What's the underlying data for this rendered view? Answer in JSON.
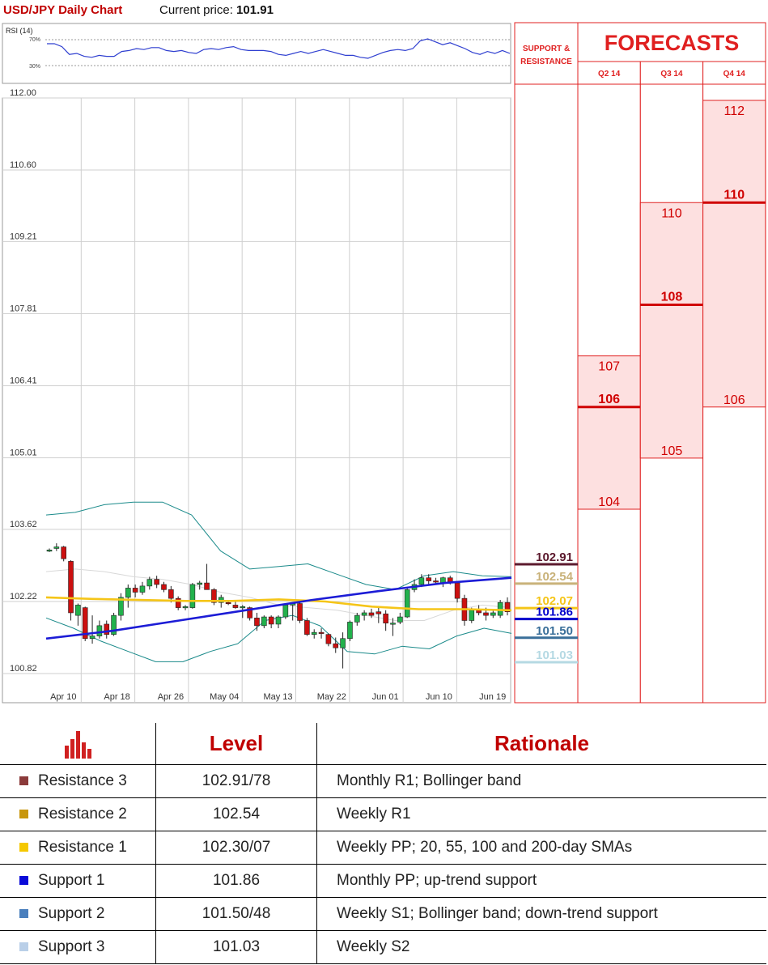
{
  "header": {
    "title": "USD/JPY Daily Chart",
    "price_label": "Current price:",
    "price_value": "101.91"
  },
  "chart_data": [
    {
      "type": "line",
      "title": "RSI (14)",
      "ylim": [
        20,
        80
      ],
      "reference_levels": [
        "70%",
        "30%"
      ],
      "series": [
        {
          "values": [
            60,
            60,
            57,
            49,
            50,
            47,
            46,
            48,
            47,
            47,
            52,
            53,
            55,
            54,
            56,
            56,
            53,
            52,
            53,
            51,
            50,
            54,
            55,
            54,
            56,
            57,
            54,
            53,
            53,
            53,
            52,
            49,
            48,
            50,
            52,
            50,
            52,
            54,
            52,
            50,
            48,
            48,
            46,
            45,
            48,
            51,
            53,
            54,
            53,
            55,
            63,
            65,
            62,
            59,
            61,
            58,
            55,
            51,
            49,
            52,
            50,
            53,
            50
          ]
        }
      ],
      "colors": {
        "line": "#2f3fd0"
      }
    },
    {
      "type": "candlestick",
      "x": [
        "Apr 10",
        "Apr 18",
        "Apr 26",
        "May 04",
        "May 13",
        "May 22",
        "Jun 01",
        "Jun 10",
        "Jun 19"
      ],
      "y_ticks": [
        "112.00",
        "110.60",
        "109.21",
        "107.81",
        "106.41",
        "105.01",
        "103.62",
        "102.22",
        "100.82"
      ],
      "ylim": [
        100.82,
        112.0
      ],
      "grid": true,
      "candles": [
        {
          "o": 103.2,
          "h": 103.25,
          "l": 103.18,
          "c": 103.22
        },
        {
          "o": 103.25,
          "h": 103.35,
          "l": 103.2,
          "c": 103.28
        },
        {
          "o": 103.28,
          "h": 103.3,
          "l": 103.0,
          "c": 103.05
        },
        {
          "o": 103.0,
          "h": 103.02,
          "l": 101.85,
          "c": 102.0
        },
        {
          "o": 101.95,
          "h": 102.18,
          "l": 101.75,
          "c": 102.15
        },
        {
          "o": 102.1,
          "h": 102.12,
          "l": 101.45,
          "c": 101.5
        },
        {
          "o": 101.5,
          "h": 101.95,
          "l": 101.4,
          "c": 101.55
        },
        {
          "o": 101.55,
          "h": 101.85,
          "l": 101.5,
          "c": 101.75
        },
        {
          "o": 101.78,
          "h": 101.85,
          "l": 101.5,
          "c": 101.58
        },
        {
          "o": 101.58,
          "h": 102.0,
          "l": 101.55,
          "c": 101.95
        },
        {
          "o": 101.95,
          "h": 102.38,
          "l": 101.85,
          "c": 102.3
        },
        {
          "o": 102.3,
          "h": 102.55,
          "l": 102.1,
          "c": 102.48
        },
        {
          "o": 102.48,
          "h": 102.55,
          "l": 102.3,
          "c": 102.4
        },
        {
          "o": 102.4,
          "h": 102.6,
          "l": 102.35,
          "c": 102.52
        },
        {
          "o": 102.52,
          "h": 102.7,
          "l": 102.45,
          "c": 102.65
        },
        {
          "o": 102.65,
          "h": 102.72,
          "l": 102.48,
          "c": 102.55
        },
        {
          "o": 102.55,
          "h": 102.6,
          "l": 102.4,
          "c": 102.45
        },
        {
          "o": 102.45,
          "h": 102.52,
          "l": 102.2,
          "c": 102.28
        },
        {
          "o": 102.28,
          "h": 102.32,
          "l": 102.05,
          "c": 102.1
        },
        {
          "o": 102.1,
          "h": 102.15,
          "l": 102.05,
          "c": 102.12
        },
        {
          "o": 102.1,
          "h": 102.58,
          "l": 102.08,
          "c": 102.55
        },
        {
          "o": 102.55,
          "h": 102.62,
          "l": 102.45,
          "c": 102.58
        },
        {
          "o": 102.58,
          "h": 102.95,
          "l": 102.55,
          "c": 102.45
        },
        {
          "o": 102.45,
          "h": 102.48,
          "l": 102.15,
          "c": 102.2
        },
        {
          "o": 102.2,
          "h": 102.35,
          "l": 102.1,
          "c": 102.3
        },
        {
          "o": 102.2,
          "h": 102.25,
          "l": 102.15,
          "c": 102.18
        },
        {
          "o": 102.15,
          "h": 102.22,
          "l": 102.08,
          "c": 102.1
        },
        {
          "o": 102.1,
          "h": 102.15,
          "l": 101.9,
          "c": 102.12
        },
        {
          "o": 102.1,
          "h": 102.12,
          "l": 101.85,
          "c": 101.9
        },
        {
          "o": 101.9,
          "h": 102.0,
          "l": 101.65,
          "c": 101.75
        },
        {
          "o": 101.75,
          "h": 101.95,
          "l": 101.7,
          "c": 101.92
        },
        {
          "o": 101.92,
          "h": 101.95,
          "l": 101.7,
          "c": 101.78
        },
        {
          "o": 101.78,
          "h": 101.95,
          "l": 101.7,
          "c": 101.92
        },
        {
          "o": 101.92,
          "h": 102.18,
          "l": 101.88,
          "c": 102.15
        },
        {
          "o": 102.15,
          "h": 102.2,
          "l": 101.85,
          "c": 102.18
        },
        {
          "o": 102.18,
          "h": 102.25,
          "l": 101.8,
          "c": 101.85
        },
        {
          "o": 101.85,
          "h": 101.9,
          "l": 101.55,
          "c": 101.58
        },
        {
          "o": 101.58,
          "h": 101.68,
          "l": 101.5,
          "c": 101.62
        },
        {
          "o": 101.62,
          "h": 101.7,
          "l": 101.5,
          "c": 101.6
        },
        {
          "o": 101.58,
          "h": 101.6,
          "l": 101.35,
          "c": 101.4
        },
        {
          "o": 101.4,
          "h": 101.52,
          "l": 101.22,
          "c": 101.32
        },
        {
          "o": 101.32,
          "h": 101.62,
          "l": 100.92,
          "c": 101.5
        },
        {
          "o": 101.5,
          "h": 101.85,
          "l": 101.45,
          "c": 101.82
        },
        {
          "o": 101.82,
          "h": 102.0,
          "l": 101.75,
          "c": 101.95
        },
        {
          "o": 101.95,
          "h": 102.05,
          "l": 101.85,
          "c": 102.0
        },
        {
          "o": 102.0,
          "h": 102.08,
          "l": 101.9,
          "c": 101.95
        },
        {
          "o": 102.02,
          "h": 102.1,
          "l": 101.8,
          "c": 101.98
        },
        {
          "o": 101.98,
          "h": 102.05,
          "l": 101.65,
          "c": 101.8
        },
        {
          "o": 101.8,
          "h": 101.9,
          "l": 101.55,
          "c": 101.8
        },
        {
          "o": 101.82,
          "h": 102.0,
          "l": 101.78,
          "c": 101.92
        },
        {
          "o": 101.92,
          "h": 102.48,
          "l": 101.9,
          "c": 102.45
        },
        {
          "o": 102.45,
          "h": 102.65,
          "l": 102.4,
          "c": 102.55
        },
        {
          "o": 102.55,
          "h": 102.75,
          "l": 102.5,
          "c": 102.68
        },
        {
          "o": 102.68,
          "h": 102.75,
          "l": 102.55,
          "c": 102.62
        },
        {
          "o": 102.62,
          "h": 102.68,
          "l": 102.55,
          "c": 102.6
        },
        {
          "o": 102.58,
          "h": 102.7,
          "l": 102.5,
          "c": 102.68
        },
        {
          "o": 102.68,
          "h": 102.72,
          "l": 102.55,
          "c": 102.58
        },
        {
          "o": 102.58,
          "h": 102.6,
          "l": 102.2,
          "c": 102.28
        },
        {
          "o": 102.28,
          "h": 102.35,
          "l": 101.75,
          "c": 101.85
        },
        {
          "o": 101.85,
          "h": 102.1,
          "l": 101.8,
          "c": 102.05
        },
        {
          "o": 102.05,
          "h": 102.15,
          "l": 101.95,
          "c": 102.0
        },
        {
          "o": 102.0,
          "h": 102.1,
          "l": 101.85,
          "c": 101.95
        },
        {
          "o": 101.95,
          "h": 102.05,
          "l": 101.9,
          "c": 102.0
        },
        {
          "o": 101.95,
          "h": 102.25,
          "l": 101.9,
          "c": 102.2
        },
        {
          "o": 102.2,
          "h": 102.3,
          "l": 101.95,
          "c": 102.02
        }
      ],
      "overlays": [
        {
          "values": [
            101.5,
            101.65,
            101.85,
            102.05,
            102.25,
            102.42,
            102.58,
            102.68
          ]
        },
        {
          "values": [
            102.3,
            102.27,
            102.25,
            102.23,
            102.23,
            102.26,
            102.22,
            102.12,
            102.07,
            102.07,
            102.05
          ]
        },
        {
          "values": [
            103.9,
            103.95,
            104.1,
            104.15,
            104.15,
            103.9,
            103.2,
            102.85,
            102.9,
            102.95,
            102.75,
            102.55,
            102.45,
            102.72,
            102.8,
            102.72,
            102.7
          ]
        },
        {
          "values": [
            101.9,
            101.7,
            101.45,
            101.25,
            101.05,
            101.05,
            101.25,
            101.4,
            101.85,
            101.95,
            101.75,
            101.25,
            101.2,
            101.35,
            101.3,
            101.55,
            101.7,
            101.6
          ]
        },
        {
          "values": [
            102.8,
            102.85,
            102.8,
            102.7,
            102.65,
            102.55,
            102.4,
            102.3,
            102.15,
            102.1,
            102.05,
            101.95,
            101.85,
            101.85,
            102.05,
            102.15,
            102.1
          ]
        }
      ],
      "levels": [
        {
          "label": "102.91",
          "value": 102.91,
          "color": "#5c1a2e"
        },
        {
          "label": "102.54",
          "value": 102.54,
          "color": "#c9b27a"
        },
        {
          "label": "102.07",
          "value": 102.07,
          "color": "#f5c518"
        },
        {
          "label": "101.86",
          "value": 101.86,
          "color": "#0000cc"
        },
        {
          "label": "101.50",
          "value": 101.5,
          "color": "#3a6f9a"
        },
        {
          "label": "101.03",
          "value": 101.03,
          "color": "#b5d9e3"
        }
      ],
      "colors": {
        "up": "#22b14c",
        "down": "#cc1010",
        "sma_blue": "#1c1cd6",
        "sma_yellow": "#f5c518",
        "bollinger": "#1a8a8a"
      }
    }
  ],
  "forecasts": {
    "support_resistance_label": [
      "SUPPORT &",
      "RESISTANCE"
    ],
    "title": "FORECASTS",
    "columns": [
      {
        "label": "Q2 14",
        "top": 107,
        "mid": 106,
        "bottom": 104
      },
      {
        "label": "Q3 14",
        "top": 110,
        "mid": 108,
        "bottom": 105
      },
      {
        "label": "Q4 14",
        "top": 112,
        "mid": 110,
        "bottom": 106
      }
    ]
  },
  "table": {
    "headers": [
      "Level",
      "Rationale"
    ],
    "rows": [
      {
        "name": "Resistance 3",
        "level": "102.91/78",
        "rationale": "Monthly R1; Bollinger band",
        "color": "#8b3a3a"
      },
      {
        "name": "Resistance 2",
        "level": "102.54",
        "rationale": "Weekly R1",
        "color": "#c8960c"
      },
      {
        "name": "Resistance 1",
        "level": "102.30/07",
        "rationale": "Weekly PP; 20, 55, 100 and 200-day SMAs",
        "color": "#f5c800"
      },
      {
        "name": "Support 1",
        "level": "101.86",
        "rationale": "Monthly PP; up-trend support",
        "color": "#0a0ad8"
      },
      {
        "name": "Support 2",
        "level": "101.50/48",
        "rationale": "Weekly S1; Bollinger band; down-trend support",
        "color": "#4a7fbd"
      },
      {
        "name": "Support 3",
        "level": "101.03",
        "rationale": "Weekly S2",
        "color": "#b9cfe8"
      }
    ]
  }
}
